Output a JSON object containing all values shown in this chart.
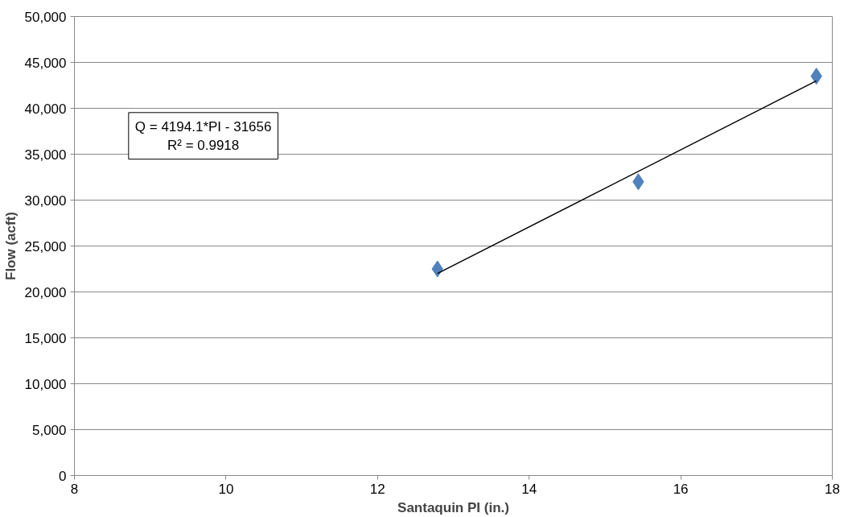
{
  "chart_data": {
    "type": "scatter",
    "xlabel": "Santaquin PI (in.)",
    "ylabel": "Flow (acft)",
    "x": [
      12.79,
      15.44,
      17.79
    ],
    "series": [
      {
        "color": "#4f81bd",
        "marker": "diamond",
        "values": [
          22500,
          32000,
          43500
        ]
      },
      {
        "type": "line",
        "color": "#000000",
        "x": [
          12.79,
          17.79
        ],
        "values": [
          22000,
          43000
        ],
        "marker": "none",
        "line_style": "solid"
      }
    ],
    "xlim": [
      8,
      18
    ],
    "xticks": [
      8,
      10,
      12,
      14,
      16,
      18
    ],
    "ylim": [
      0,
      50000
    ],
    "yticks": [
      0,
      {
        "value": 5000,
        "label": "5,000"
      },
      {
        "value": 10000,
        "label": "10,000"
      },
      {
        "value": 15000,
        "label": "15,000"
      },
      {
        "value": 20000,
        "label": "20,000"
      },
      {
        "value": 25000,
        "label": "25,000"
      },
      {
        "value": 30000,
        "label": "30,000"
      },
      {
        "value": 35000,
        "label": "35,000"
      },
      {
        "value": 40000,
        "label": "40,000"
      },
      {
        "value": 45000,
        "label": "45,000"
      },
      {
        "value": 50000,
        "label": "50,000"
      }
    ],
    "grid": "y",
    "annotations": [
      "Q = 4194.1*PI - 31656",
      "R² = 0.9918"
    ]
  }
}
